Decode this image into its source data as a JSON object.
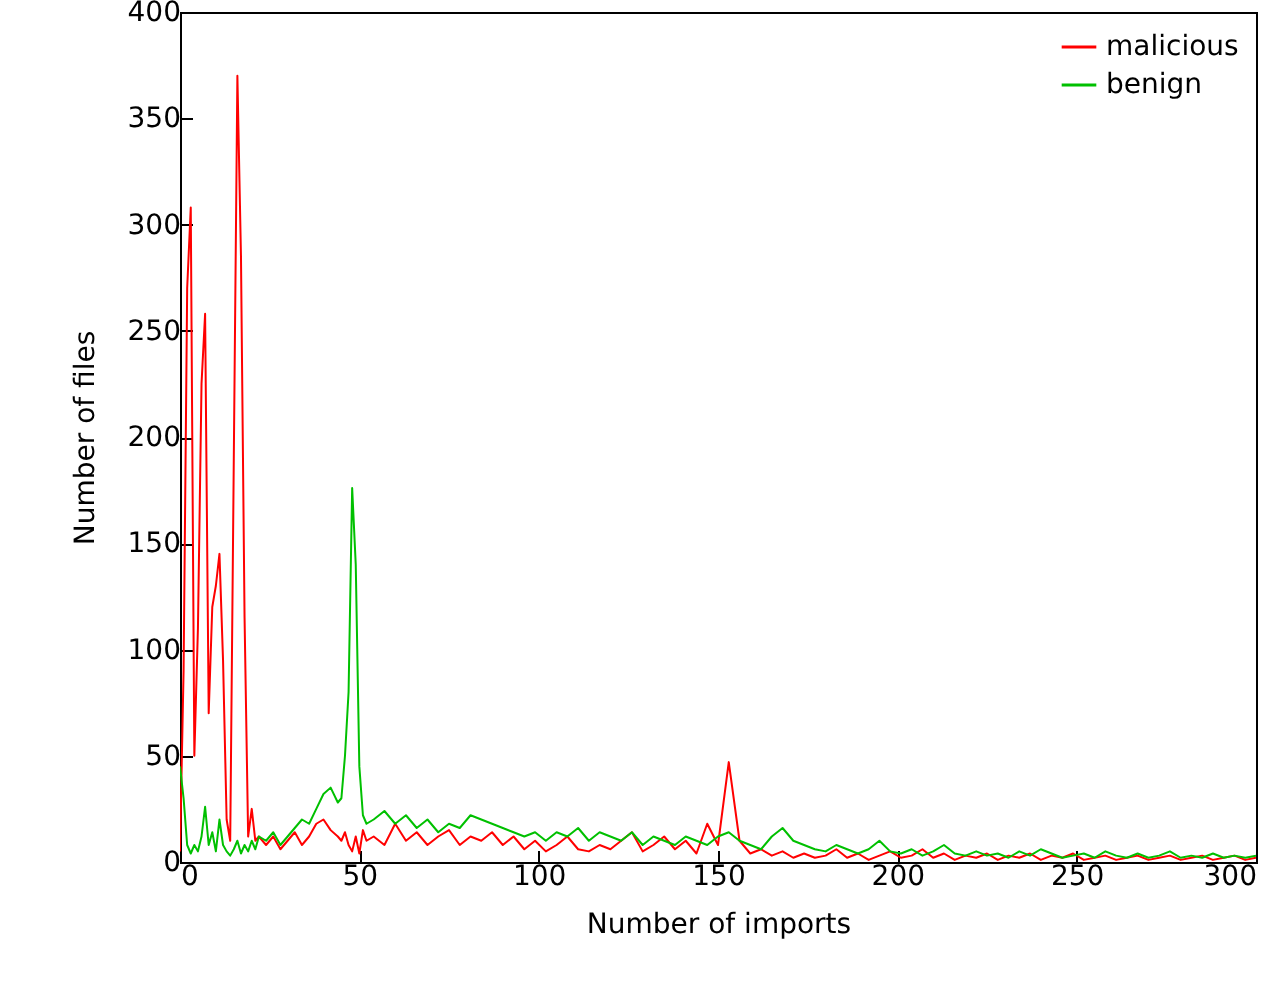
{
  "chart_data": {
    "type": "line",
    "xlabel": "Number of imports",
    "ylabel": "Number of files",
    "x": [
      0,
      1,
      2,
      3,
      4,
      5,
      6,
      7,
      8,
      9,
      10,
      11,
      12,
      13,
      14,
      15,
      16,
      17,
      18,
      19,
      20,
      21,
      22,
      24,
      26,
      28,
      30,
      32,
      34,
      36,
      38,
      40,
      42,
      44,
      45,
      46,
      47,
      48,
      49,
      50,
      51,
      52,
      54,
      57,
      60,
      63,
      66,
      69,
      72,
      75,
      78,
      81,
      84,
      87,
      90,
      93,
      96,
      99,
      102,
      105,
      108,
      111,
      114,
      117,
      120,
      123,
      126,
      129,
      132,
      135,
      138,
      141,
      144,
      147,
      150,
      153,
      156,
      159,
      162,
      165,
      168,
      171,
      174,
      177,
      180,
      183,
      186,
      189,
      192,
      195,
      198,
      201,
      204,
      207,
      210,
      213,
      216,
      219,
      222,
      225,
      228,
      231,
      234,
      237,
      240,
      243,
      246,
      249,
      252,
      255,
      258,
      261,
      264,
      267,
      270,
      273,
      276,
      279,
      282,
      285,
      288,
      291,
      294,
      297,
      300
    ],
    "series": [
      {
        "name": "malicious",
        "color": "#ff0000",
        "values": [
          5,
          90,
          270,
          308,
          50,
          110,
          225,
          258,
          70,
          120,
          130,
          145,
          95,
          20,
          10,
          190,
          370,
          285,
          115,
          12,
          25,
          10,
          12,
          8,
          12,
          6,
          10,
          14,
          8,
          12,
          18,
          20,
          15,
          12,
          10,
          14,
          8,
          5,
          12,
          4,
          15,
          10,
          12,
          8,
          18,
          10,
          14,
          8,
          12,
          15,
          8,
          12,
          10,
          14,
          8,
          12,
          6,
          10,
          5,
          8,
          12,
          6,
          5,
          8,
          6,
          10,
          14,
          5,
          8,
          12,
          6,
          10,
          4,
          18,
          8,
          47,
          10,
          4,
          6,
          3,
          5,
          2,
          4,
          2,
          3,
          6,
          2,
          4,
          1,
          3,
          5,
          2,
          3,
          6,
          2,
          4,
          1,
          3,
          2,
          4,
          1,
          3,
          2,
          4,
          1,
          3,
          2,
          4,
          1,
          2,
          3,
          1,
          2,
          3,
          1,
          2,
          3,
          1,
          2,
          3,
          1,
          2,
          3,
          1,
          2
        ]
      },
      {
        "name": "benign",
        "color": "#00c000",
        "values": [
          45,
          30,
          8,
          4,
          8,
          5,
          12,
          26,
          8,
          14,
          5,
          20,
          8,
          5,
          3,
          6,
          10,
          4,
          8,
          5,
          10,
          6,
          12,
          10,
          14,
          8,
          12,
          16,
          20,
          18,
          25,
          32,
          35,
          28,
          30,
          50,
          80,
          176,
          140,
          45,
          22,
          18,
          20,
          24,
          18,
          22,
          16,
          20,
          14,
          18,
          16,
          22,
          20,
          18,
          16,
          14,
          12,
          14,
          10,
          14,
          12,
          16,
          10,
          14,
          12,
          10,
          14,
          8,
          12,
          10,
          8,
          12,
          10,
          8,
          12,
          14,
          10,
          8,
          6,
          12,
          16,
          10,
          8,
          6,
          5,
          8,
          6,
          4,
          6,
          10,
          5,
          4,
          6,
          3,
          5,
          8,
          4,
          3,
          5,
          3,
          4,
          2,
          5,
          3,
          6,
          4,
          2,
          3,
          4,
          2,
          5,
          3,
          2,
          4,
          2,
          3,
          5,
          2,
          3,
          2,
          4,
          2,
          3,
          2,
          3
        ]
      }
    ],
    "xlim": [
      0,
      300
    ],
    "xticks": [
      0,
      50,
      100,
      150,
      200,
      250,
      300
    ],
    "ylim": [
      0,
      400
    ],
    "yticks": [
      0,
      50,
      100,
      150,
      200,
      250,
      300,
      350,
      400
    ],
    "grid": false,
    "legend": "top right",
    "marker": "none",
    "line_style": "solid"
  }
}
